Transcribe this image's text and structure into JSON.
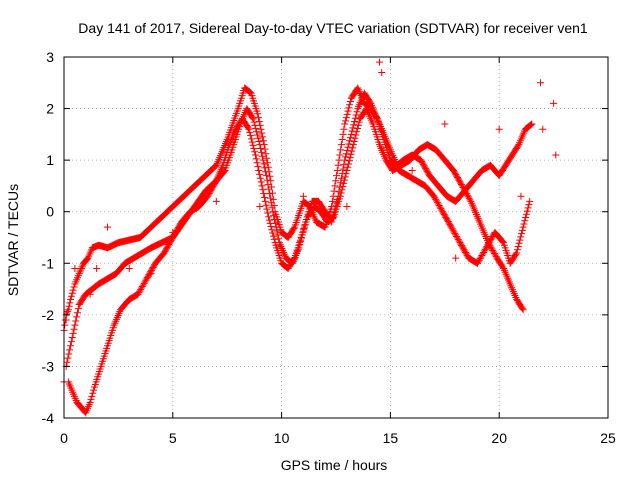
{
  "chart_data": {
    "type": "scatter",
    "title": "Day 141 of 2017, Sidereal Day-to-day VTEC variation (SDTVAR) for receiver ven1",
    "xlabel": "GPS time / hours",
    "ylabel": "SDTVAR / TECUs",
    "xlim": [
      0,
      25
    ],
    "ylim": [
      -4,
      3
    ],
    "xticks": [
      "0",
      "5",
      "10",
      "15",
      "20",
      "25"
    ],
    "yticks": [
      "-4",
      "-3",
      "-2",
      "-1",
      "0",
      "1",
      "2",
      "3"
    ],
    "grid": true,
    "marker": "+",
    "color": "#ff0000",
    "series": [
      {
        "x": [
          0.0,
          0.1,
          0.2,
          0.3,
          0.5,
          0.7,
          0.9,
          1.1,
          1.3,
          1.6,
          2.0,
          2.5,
          3.0,
          3.5,
          4.0,
          4.5,
          5.0,
          5.5,
          6.0,
          6.5,
          7.0,
          7.5,
          8.0,
          8.3,
          8.6,
          8.9,
          9.2,
          9.5,
          9.7,
          10.0,
          10.3,
          10.6,
          11.0,
          11.3,
          11.6,
          12.0,
          12.3,
          12.6,
          12.9,
          13.2,
          13.5,
          13.8,
          14.1,
          14.4,
          14.7,
          15.0,
          15.3,
          15.6,
          16.0,
          16.4,
          16.8,
          17.2,
          17.6,
          18.0,
          18.4,
          18.8,
          19.2,
          19.6,
          20.0,
          20.3,
          20.6,
          20.9,
          21.2,
          21.5
        ],
        "y": [
          -2.3,
          -2.0,
          -1.9,
          -1.7,
          -1.4,
          -1.2,
          -1.0,
          -0.9,
          -0.7,
          -0.65,
          -0.7,
          -0.6,
          -0.55,
          -0.5,
          -0.3,
          -0.1,
          0.1,
          0.3,
          0.5,
          0.7,
          0.9,
          1.4,
          2.0,
          2.4,
          2.3,
          1.9,
          1.3,
          0.6,
          0.0,
          -0.4,
          -0.5,
          -0.3,
          0.2,
          0.1,
          -0.2,
          -0.3,
          0.1,
          0.9,
          1.7,
          2.2,
          2.4,
          2.1,
          2.0,
          1.8,
          1.5,
          1.2,
          0.9,
          1.0,
          1.1,
          1.0,
          0.7,
          0.5,
          0.3,
          0.2,
          0.4,
          0.6,
          0.8,
          0.9,
          0.7,
          0.9,
          1.1,
          1.3,
          1.6,
          1.7
        ]
      },
      {
        "x": [
          0.1,
          0.3,
          0.5,
          0.7,
          1.0,
          1.3,
          1.6,
          2.0,
          2.4,
          2.8,
          3.2,
          3.6,
          4.0,
          4.5,
          5.0,
          5.5,
          6.0,
          6.5,
          7.0,
          7.4,
          7.8,
          8.1,
          8.4,
          8.7,
          9.0,
          9.3,
          9.6,
          9.9,
          10.2,
          10.5,
          10.8,
          11.1,
          11.4,
          11.7,
          12.0,
          12.3,
          12.6,
          12.9,
          13.2,
          13.5,
          13.8,
          14.1,
          14.4,
          14.7,
          15.0,
          15.4,
          15.8,
          16.2,
          16.6,
          17.0,
          17.4,
          17.8,
          18.2,
          18.6,
          19.0,
          19.4,
          19.8,
          20.2,
          20.5,
          20.8,
          21.1,
          21.4
        ],
        "y": [
          -3.0,
          -2.6,
          -2.2,
          -1.8,
          -1.6,
          -1.5,
          -1.4,
          -1.3,
          -1.2,
          -1.0,
          -0.9,
          -0.8,
          -0.7,
          -0.6,
          -0.5,
          -0.2,
          0.1,
          0.4,
          0.6,
          0.8,
          1.3,
          1.7,
          2.0,
          1.8,
          1.3,
          0.7,
          0.0,
          -0.6,
          -0.9,
          -1.0,
          -0.7,
          -0.2,
          0.2,
          0.2,
          0.0,
          -0.2,
          0.3,
          1.0,
          1.5,
          2.0,
          2.3,
          2.1,
          1.8,
          1.4,
          1.0,
          0.8,
          0.7,
          0.6,
          0.5,
          0.3,
          0.0,
          -0.3,
          -0.6,
          -0.9,
          -1.0,
          -0.7,
          -0.4,
          -0.6,
          -1.0,
          -0.8,
          -0.3,
          0.2
        ]
      },
      {
        "x": [
          0.2,
          0.4,
          0.6,
          0.8,
          1.0,
          1.2,
          1.4,
          1.7,
          2.0,
          2.3,
          2.6,
          3.0,
          3.4,
          3.8,
          4.2,
          4.6,
          5.0,
          5.4,
          5.8,
          6.2,
          6.6,
          7.0,
          7.3,
          7.6,
          7.9,
          8.2,
          8.5,
          8.8,
          9.1,
          9.4,
          9.7,
          10.0,
          10.3,
          10.6,
          10.9,
          11.2,
          11.5,
          11.8,
          12.1,
          12.4,
          12.7,
          13.0,
          13.3,
          13.6,
          13.9,
          14.2,
          14.5,
          14.8,
          15.1,
          15.5,
          15.9,
          16.3,
          16.7,
          17.1,
          17.5,
          17.9,
          18.3,
          18.7,
          19.1,
          19.5,
          19.9,
          20.2,
          20.5,
          20.8,
          21.1
        ],
        "y": [
          -3.3,
          -3.5,
          -3.7,
          -3.8,
          -3.9,
          -3.7,
          -3.4,
          -3.0,
          -2.6,
          -2.2,
          -1.9,
          -1.7,
          -1.6,
          -1.3,
          -1.0,
          -0.8,
          -0.5,
          -0.2,
          0.0,
          0.1,
          0.3,
          0.6,
          0.9,
          1.3,
          1.6,
          1.8,
          1.6,
          1.1,
          0.5,
          -0.1,
          -0.6,
          -1.0,
          -1.1,
          -0.9,
          -0.5,
          -0.1,
          0.1,
          0.0,
          -0.2,
          -0.1,
          0.3,
          0.8,
          1.3,
          1.8,
          2.0,
          1.7,
          1.3,
          1.0,
          0.8,
          0.9,
          1.0,
          1.2,
          1.3,
          1.2,
          1.0,
          0.8,
          0.5,
          0.2,
          -0.2,
          -0.6,
          -0.9,
          -1.1,
          -1.4,
          -1.7,
          -1.9
        ]
      },
      {
        "x": [
          0.0,
          0.1,
          0.5,
          1.2,
          1.5,
          2.0,
          3.0,
          4.0,
          5.0,
          7.0,
          9.0,
          11.0,
          13.0,
          14.5,
          14.6,
          16.0,
          17.5,
          18.0,
          19.0,
          20.0,
          21.0,
          21.9,
          22.0,
          22.5,
          22.6
        ],
        "y": [
          -3.3,
          -2.1,
          -1.1,
          -1.6,
          -1.1,
          -0.3,
          -1.1,
          -1.2,
          -0.4,
          0.2,
          0.1,
          0.3,
          0.1,
          2.9,
          2.7,
          0.8,
          1.7,
          -0.9,
          -1.0,
          1.6,
          0.3,
          2.5,
          1.6,
          2.1,
          1.1
        ]
      }
    ]
  }
}
